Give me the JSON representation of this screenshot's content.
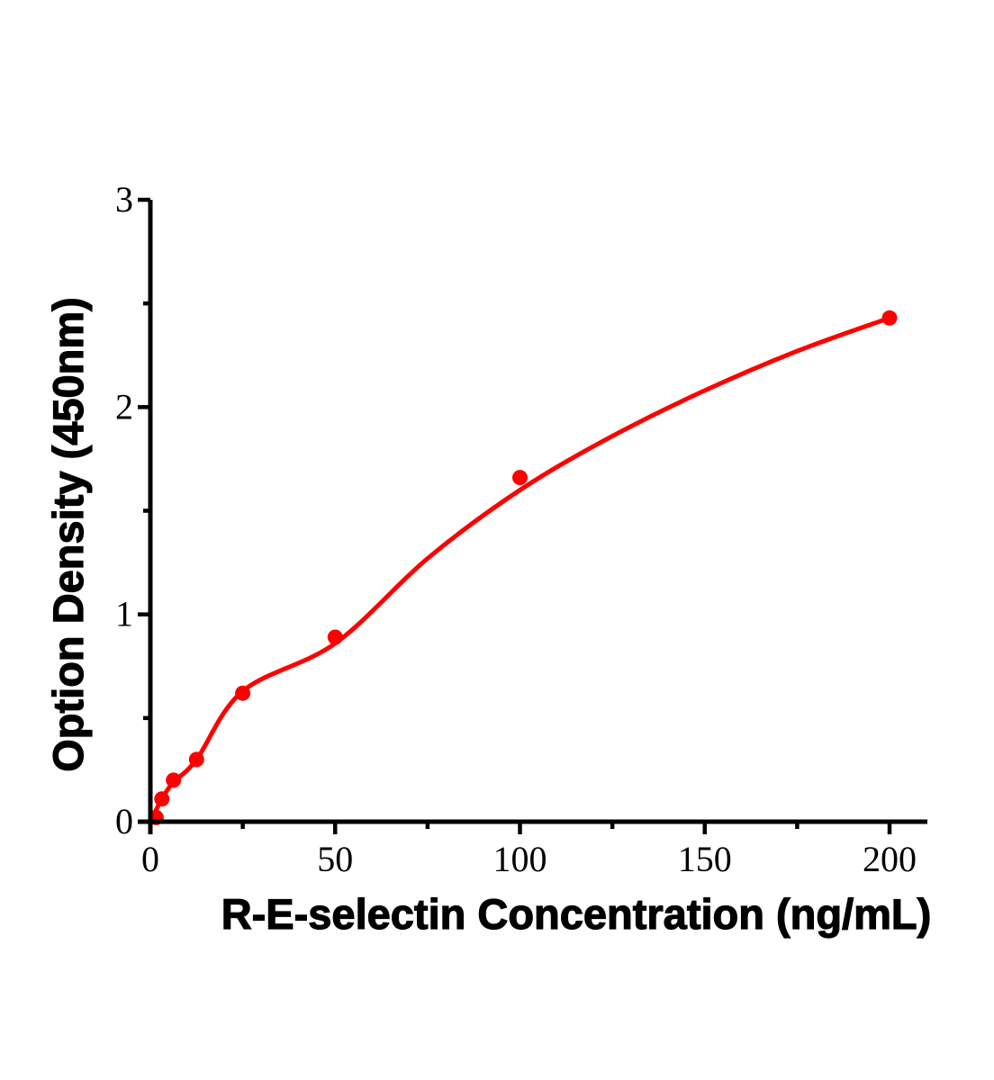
{
  "chart_data": {
    "type": "scatter",
    "title": "",
    "xlabel": "R-E-selectin Concentration (ng/mL)",
    "ylabel": "Option Density (450nm)",
    "xlim": [
      0,
      210
    ],
    "ylim": [
      0,
      3
    ],
    "grid": false,
    "legend": false,
    "axis_color": "#000000",
    "accent_color": "#FF0000",
    "x_major_ticks": [
      0,
      50,
      100,
      150,
      200
    ],
    "x_minor_ticks": [
      25,
      75,
      125,
      175
    ],
    "y_major_ticks": [
      0,
      1,
      2,
      3
    ],
    "y_minor_ticks": [
      0.5,
      1.5,
      2.5
    ],
    "series": [
      {
        "name": "fitted-curve",
        "type": "line",
        "color": "#FF0000",
        "points": [
          {
            "x": 0,
            "y": 0.0
          },
          {
            "x": 3.125,
            "y": 0.11
          },
          {
            "x": 6.25,
            "y": 0.19
          },
          {
            "x": 12.5,
            "y": 0.3
          },
          {
            "x": 25,
            "y": 0.63
          },
          {
            "x": 50,
            "y": 0.86
          },
          {
            "x": 75,
            "y": 1.27
          },
          {
            "x": 100,
            "y": 1.6
          },
          {
            "x": 125,
            "y": 1.86
          },
          {
            "x": 150,
            "y": 2.08
          },
          {
            "x": 175,
            "y": 2.27
          },
          {
            "x": 200,
            "y": 2.43
          }
        ]
      },
      {
        "name": "standard-points",
        "type": "scatter",
        "color": "#FF0000",
        "points": [
          {
            "x": 1.563,
            "y": 0.02
          },
          {
            "x": 3.125,
            "y": 0.11
          },
          {
            "x": 6.25,
            "y": 0.2
          },
          {
            "x": 12.5,
            "y": 0.3
          },
          {
            "x": 25,
            "y": 0.62
          },
          {
            "x": 50,
            "y": 0.89
          },
          {
            "x": 100,
            "y": 1.66
          },
          {
            "x": 200,
            "y": 2.43
          }
        ]
      }
    ]
  }
}
